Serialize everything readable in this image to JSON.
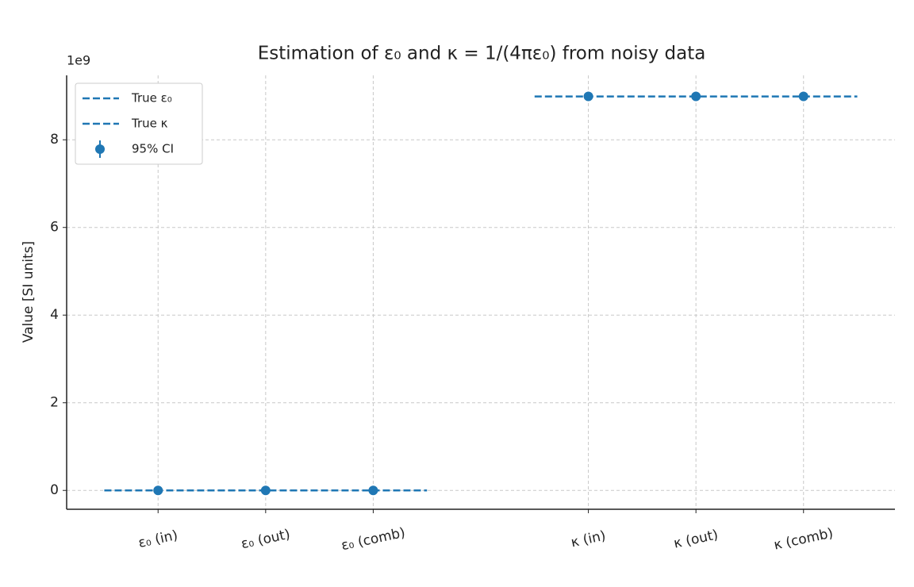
{
  "chart_data": {
    "type": "errorbar",
    "title": "Estimation of ε₀ and κ = 1/(4πε₀) from noisy data",
    "ylabel": "Value [SI units]",
    "y_offset_label": "1e9",
    "categories": [
      "ε₀ (in)",
      "ε₀ (out)",
      "ε₀ (comb)",
      "κ (in)",
      "κ (out)",
      "κ (comb)"
    ],
    "xticks": [
      0,
      1,
      2,
      4,
      5,
      6
    ],
    "xlim": [
      -0.85,
      6.85
    ],
    "ylim": [
      -430000000,
      9470000000
    ],
    "yticks": [
      {
        "value": 0,
        "label": "0"
      },
      {
        "value": 2000000000,
        "label": "2"
      },
      {
        "value": 4000000000,
        "label": "4"
      },
      {
        "value": 6000000000,
        "label": "6"
      },
      {
        "value": 8000000000,
        "label": "8"
      }
    ],
    "grid": true,
    "legend": "upper left",
    "series": [
      {
        "name": "True ε₀",
        "color": "#1f77b4",
        "style": "dashed",
        "x": [
          -0.5,
          2.5
        ],
        "values": [
          8.854e-12,
          8.854e-12
        ]
      },
      {
        "name": "True κ",
        "color": "#1f77b4",
        "style": "dashed",
        "x": [
          3.5,
          6.5
        ],
        "values": [
          8988000000,
          8988000000
        ]
      },
      {
        "name": "95% CI",
        "color": "#1f77b4",
        "style": "errorbar",
        "x": [
          0,
          1,
          2,
          4,
          5,
          6
        ],
        "values": [
          8.85e-12,
          8.86e-12,
          8.855e-12,
          8990000000,
          8990000000,
          8990000000
        ]
      }
    ]
  }
}
